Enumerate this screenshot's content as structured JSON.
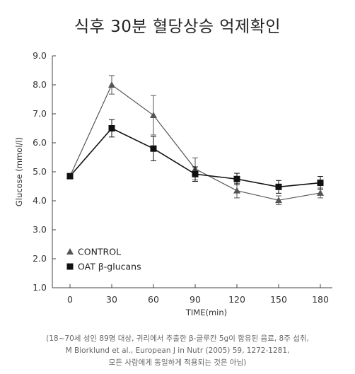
{
  "title": "식후 30분 혈당상승 억제확인",
  "footnote": [
    "(18~70세 성인 89명 대상, 귀리에서 추출한 β-글루칸 5g이 함유된 음료, 8주 섭취,",
    "M Biorklund et al., European J in Nutr (2005) 59, 1272-1281,",
    "모든 사람에게 동일하게 적용되는 것은 아님)"
  ],
  "chart_data": {
    "type": "line",
    "title": "식후 30분 혈당상승 억제확인",
    "xlabel": "TIME(min)",
    "ylabel": "Glucose (mmol/l)",
    "x": [
      0,
      30,
      60,
      90,
      120,
      150,
      180
    ],
    "xlim": [
      0,
      180
    ],
    "ylim": [
      1.0,
      9.0
    ],
    "yticks": [
      "1.0",
      "2.0",
      "3.0",
      "4.0",
      "5.0",
      "6.0",
      "7.0",
      "8.0",
      "9.0"
    ],
    "xticks": [
      "0",
      "30",
      "60",
      "90",
      "120",
      "150",
      "180"
    ],
    "grid": false,
    "legend_position": "bottom-left",
    "series": [
      {
        "name": "CONTROL",
        "marker": "triangle",
        "color": "#555555",
        "values": [
          4.85,
          8.0,
          6.95,
          5.1,
          4.35,
          4.02,
          4.27
        ],
        "error": [
          0,
          0.32,
          0.68,
          0.38,
          0.25,
          0.15,
          0.17
        ]
      },
      {
        "name": "OAT β-glucans",
        "marker": "square",
        "color": "#111111",
        "values": [
          4.85,
          6.5,
          5.8,
          4.92,
          4.75,
          4.48,
          4.62
        ],
        "error": [
          0,
          0.3,
          0.42,
          0.25,
          0.2,
          0.22,
          0.22
        ]
      }
    ]
  }
}
